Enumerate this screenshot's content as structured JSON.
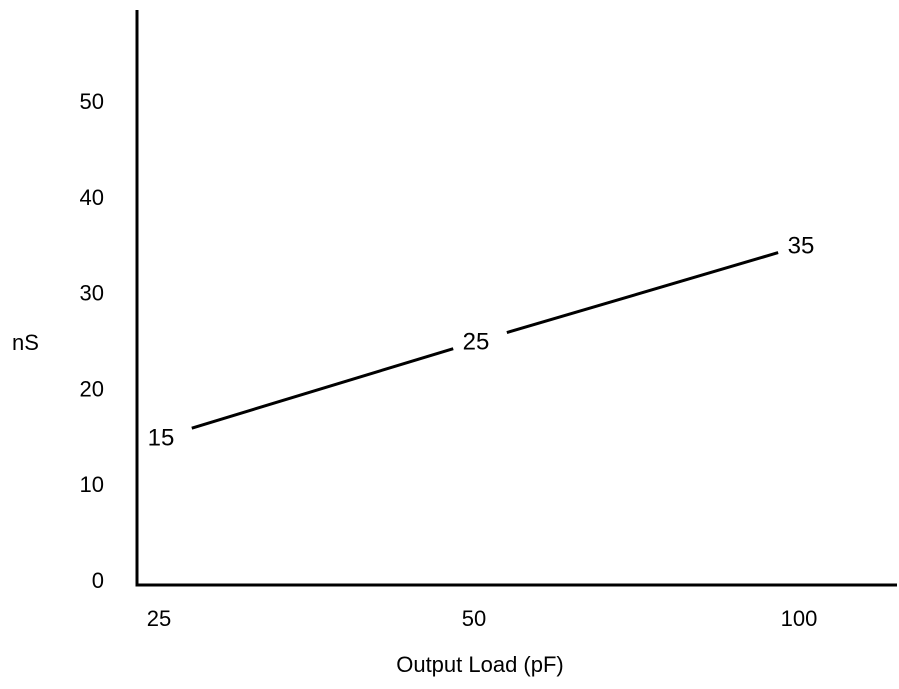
{
  "chart_data": {
    "type": "line",
    "title": "",
    "xlabel": "Output Load (pF)",
    "ylabel": "nS",
    "categories": [
      "25",
      "50",
      "100"
    ],
    "y_ticks": [
      "0",
      "10",
      "20",
      "30",
      "40",
      "50"
    ],
    "ylim": [
      0,
      58
    ],
    "grid": false,
    "legend": "none",
    "series": [
      {
        "values": [
          15,
          25,
          35
        ],
        "labels": [
          "15",
          "25",
          "35"
        ],
        "color": "#000000"
      }
    ]
  }
}
